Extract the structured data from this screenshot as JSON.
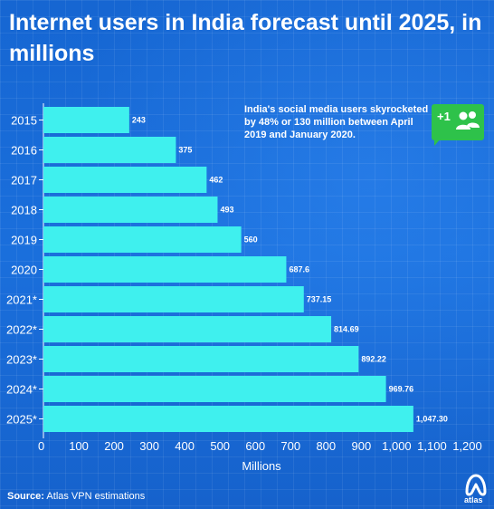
{
  "title": "Internet users in India forecast until 2025, in millions",
  "annotation": "India's social media users skyrocketed by 48% or 130 million between April 2019 and January 2020.",
  "badge": {
    "text": "+1",
    "icon": "people-icon",
    "color": "#2ec24a"
  },
  "source": {
    "label": "Source:",
    "text": "Atlas VPN estimations"
  },
  "logo": {
    "text": "atlas"
  },
  "colors": {
    "background": "#1a6fd8",
    "bar": "#3ff0ee",
    "text": "#ffffff"
  },
  "chart_data": {
    "type": "bar",
    "orientation": "horizontal",
    "categories": [
      "2015",
      "2016",
      "2017",
      "2018",
      "2019",
      "2020",
      "2021*",
      "2022*",
      "2023*",
      "2024*",
      "2025*"
    ],
    "values": [
      243,
      375,
      462,
      493,
      560,
      687.6,
      737.15,
      814.69,
      892.22,
      969.76,
      1047.3
    ],
    "value_labels": [
      "243",
      "375",
      "462",
      "493",
      "560",
      "687.6",
      "737.15",
      "814.69",
      "892.22",
      "969.76",
      "1,047.30"
    ],
    "xlabel": "Millions",
    "ylabel": "",
    "xlim": [
      0,
      1250
    ],
    "xticks": [
      0,
      100,
      200,
      300,
      400,
      500,
      600,
      700,
      800,
      900,
      1000,
      1100,
      1200
    ],
    "xtick_labels": [
      "0",
      "100",
      "200",
      "300",
      "400",
      "500",
      "600",
      "700",
      "800",
      "900",
      "1,000",
      "1,100",
      "1,200"
    ],
    "grid": false,
    "legend": "none"
  }
}
